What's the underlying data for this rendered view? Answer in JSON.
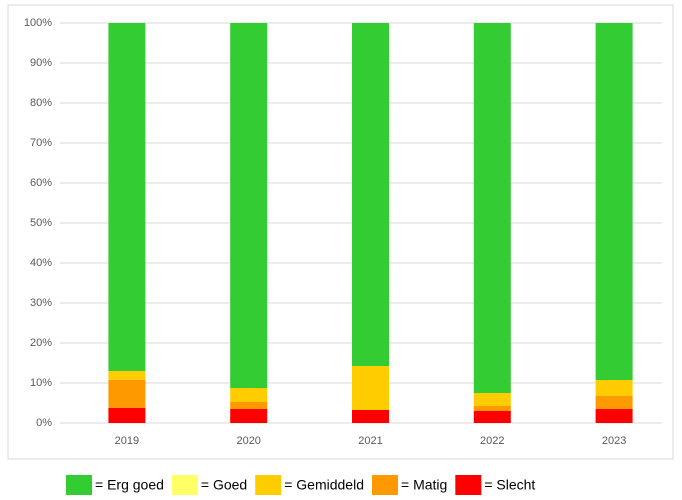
{
  "chart_data": {
    "type": "stacked-bar",
    "categories": [
      "2019",
      "2020",
      "2021",
      "2022",
      "2023"
    ],
    "series": [
      {
        "name": "= Erg goed",
        "color": "#33cc33",
        "values": [
          87,
          91.25,
          85.75,
          92.5,
          89.25
        ]
      },
      {
        "name": "= Goed",
        "color": "#ffff66",
        "values": [
          0,
          0,
          0,
          0,
          0
        ]
      },
      {
        "name": "= Gemiddeld",
        "color": "#ffcc00",
        "values": [
          2.2,
          3.5,
          11,
          3.25,
          4
        ]
      },
      {
        "name": "= Matig",
        "color": "#ff9900",
        "values": [
          7,
          1.75,
          0,
          1.25,
          3.25
        ]
      },
      {
        "name": "= Slecht",
        "color": "#ff0000",
        "values": [
          3.8,
          3.5,
          3.25,
          3,
          3.5
        ]
      }
    ],
    "ylim": [
      0,
      100
    ],
    "yticks": [
      {
        "value": 0,
        "label": "0%"
      },
      {
        "value": 10,
        "label": "10%"
      },
      {
        "value": 20,
        "label": "20%"
      },
      {
        "value": 30,
        "label": "30%"
      },
      {
        "value": 40,
        "label": "40%"
      },
      {
        "value": 50,
        "label": "50%"
      },
      {
        "value": 60,
        "label": "60%"
      },
      {
        "value": 70,
        "label": "70%"
      },
      {
        "value": 80,
        "label": "80%"
      },
      {
        "value": 90,
        "label": "90%"
      },
      {
        "value": 100,
        "label": "100%"
      }
    ],
    "grid": true,
    "legend": "bottom"
  }
}
